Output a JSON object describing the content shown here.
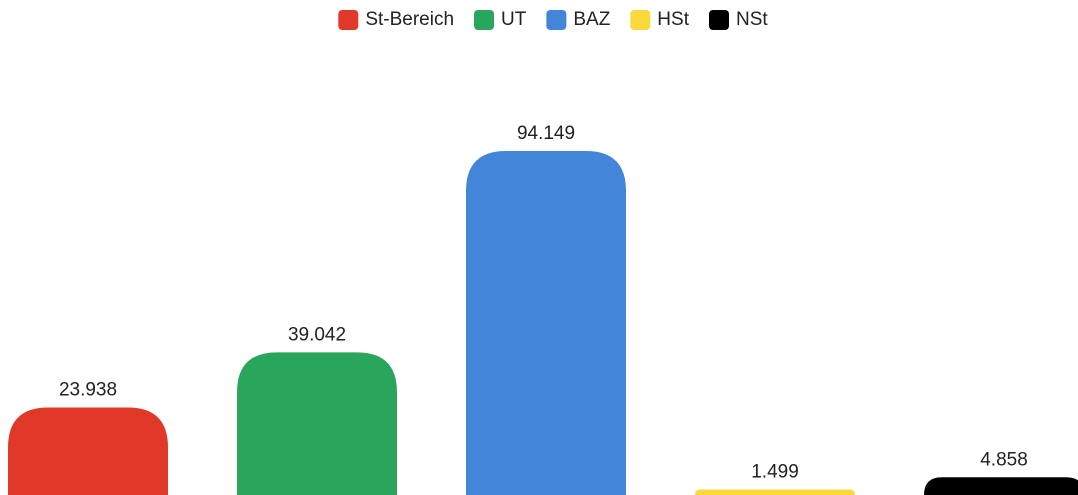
{
  "chart_data": {
    "type": "bar",
    "categories": [
      "St-Bereich",
      "UT",
      "BAZ",
      "HSt",
      "NSt"
    ],
    "values": [
      23.938,
      39.042,
      94.149,
      1.499,
      4.858
    ],
    "colors": [
      "#e0392a",
      "#2aa55c",
      "#4285d9",
      "#fbd93a",
      "#000000"
    ],
    "legend": "top"
  }
}
